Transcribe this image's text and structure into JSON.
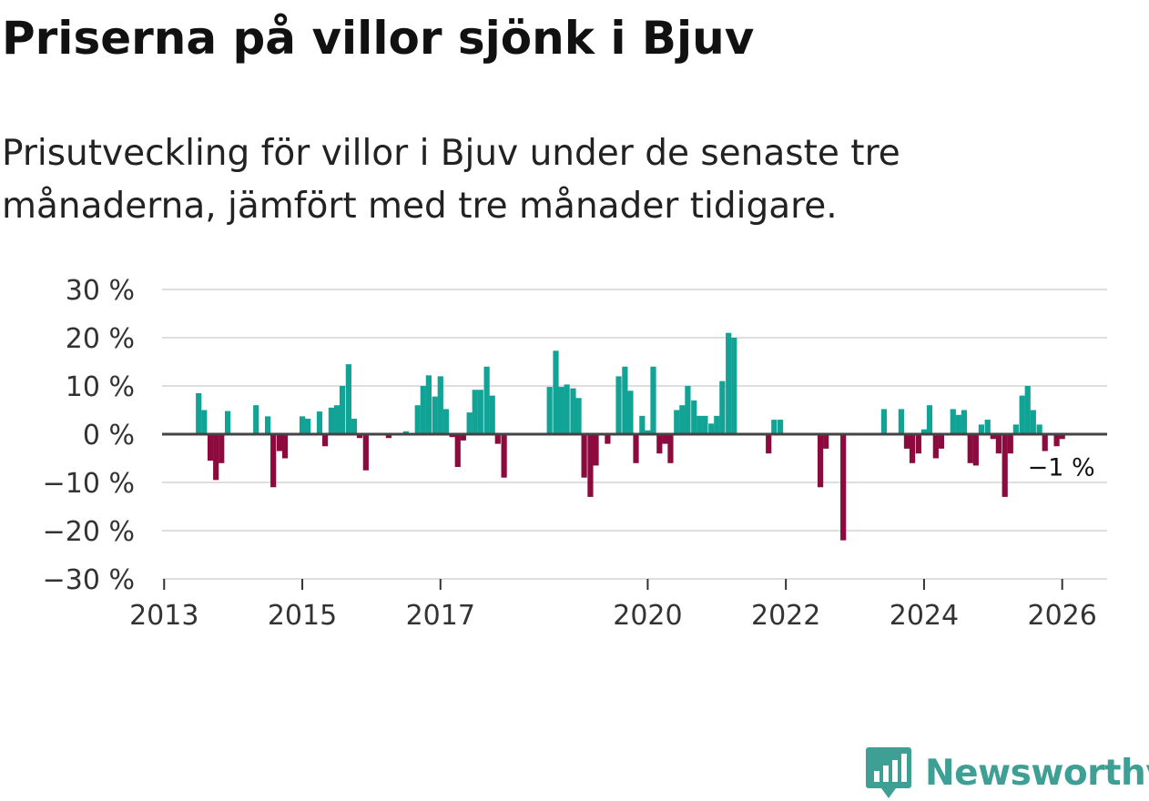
{
  "title": "Priserna på villor sjönk i Bjuv",
  "subtitle": "Prisutveckling för villor i Bjuv under de senaste tre månaderna, jämfört med tre månader tidigare.",
  "brand": {
    "name": "Newsworthy",
    "logo_icon": "bar-chart-speech-bubble-icon",
    "color": "#3ea094"
  },
  "chart_data": {
    "type": "bar",
    "title": "Priserna på villor sjönk i Bjuv",
    "xlabel": "",
    "ylabel": "",
    "ylim": [
      -30,
      30
    ],
    "xlim": [
      2012.97,
      2026.65
    ],
    "grid": true,
    "colors": {
      "positive": "#10a396",
      "negative": "#8c0a3e",
      "zero_line": "#444444",
      "grid": "#dedede"
    },
    "y_ticks": [
      {
        "value": 30,
        "label": "30 %"
      },
      {
        "value": 20,
        "label": "20 %"
      },
      {
        "value": 10,
        "label": "10 %"
      },
      {
        "value": 0,
        "label": "0 %"
      },
      {
        "value": -10,
        "label": "−10 %"
      },
      {
        "value": -20,
        "label": "−20 %"
      },
      {
        "value": -30,
        "label": "−30 %"
      }
    ],
    "x_ticks": [
      {
        "value": 2013,
        "label": "2013"
      },
      {
        "value": 2015,
        "label": "2015"
      },
      {
        "value": 2017,
        "label": "2017"
      },
      {
        "value": 2020,
        "label": "2020"
      },
      {
        "value": 2022,
        "label": "2022"
      },
      {
        "value": 2024,
        "label": "2024"
      },
      {
        "value": 2026,
        "label": "2026"
      }
    ],
    "end_label": "−1 %",
    "series": [
      {
        "name": "Prisutveckling",
        "unit": "%",
        "points": [
          [
            2013.5,
            8.5
          ],
          [
            2013.58,
            5
          ],
          [
            2013.67,
            -5.5
          ],
          [
            2013.75,
            -9.5
          ],
          [
            2013.83,
            -6
          ],
          [
            2013.92,
            4.8
          ],
          [
            2014.33,
            6
          ],
          [
            2014.5,
            3.7
          ],
          [
            2014.58,
            -11
          ],
          [
            2014.67,
            -3.5
          ],
          [
            2014.75,
            -5
          ],
          [
            2015.0,
            3.7
          ],
          [
            2015.08,
            3.2
          ],
          [
            2015.25,
            4.7
          ],
          [
            2015.33,
            -2.5
          ],
          [
            2015.42,
            5.5
          ],
          [
            2015.5,
            6
          ],
          [
            2015.58,
            10
          ],
          [
            2015.67,
            14.5
          ],
          [
            2015.75,
            3.2
          ],
          [
            2015.83,
            -0.8
          ],
          [
            2015.92,
            -7.5
          ],
          [
            2016.25,
            -0.8
          ],
          [
            2016.5,
            0.6
          ],
          [
            2016.67,
            6
          ],
          [
            2016.75,
            10
          ],
          [
            2016.83,
            12.2
          ],
          [
            2016.92,
            7.8
          ],
          [
            2017.0,
            12
          ],
          [
            2017.08,
            5.2
          ],
          [
            2017.17,
            -0.6
          ],
          [
            2017.25,
            -6.8
          ],
          [
            2017.33,
            -1.3
          ],
          [
            2017.42,
            4.5
          ],
          [
            2017.5,
            9.2
          ],
          [
            2017.58,
            9.2
          ],
          [
            2017.67,
            14
          ],
          [
            2017.75,
            8
          ],
          [
            2017.83,
            -2
          ],
          [
            2017.92,
            -9
          ],
          [
            2018.58,
            9.8
          ],
          [
            2018.67,
            17.3
          ],
          [
            2018.75,
            9.8
          ],
          [
            2018.83,
            10.3
          ],
          [
            2018.92,
            9.5
          ],
          [
            2019.0,
            7.5
          ],
          [
            2019.08,
            -9
          ],
          [
            2019.17,
            -13
          ],
          [
            2019.25,
            -6.5
          ],
          [
            2019.42,
            -2
          ],
          [
            2019.58,
            12
          ],
          [
            2019.67,
            14
          ],
          [
            2019.75,
            9
          ],
          [
            2019.83,
            -6
          ],
          [
            2019.92,
            3.8
          ],
          [
            2020.0,
            0.8
          ],
          [
            2020.08,
            14
          ],
          [
            2020.17,
            -4
          ],
          [
            2020.25,
            -2
          ],
          [
            2020.33,
            -6
          ],
          [
            2020.42,
            5
          ],
          [
            2020.5,
            6
          ],
          [
            2020.58,
            10
          ],
          [
            2020.67,
            7
          ],
          [
            2020.75,
            3.8
          ],
          [
            2020.83,
            3.8
          ],
          [
            2020.92,
            2.2
          ],
          [
            2021.0,
            3.8
          ],
          [
            2021.08,
            11
          ],
          [
            2021.17,
            21
          ],
          [
            2021.25,
            20
          ],
          [
            2021.75,
            -4
          ],
          [
            2021.83,
            3
          ],
          [
            2021.92,
            3
          ],
          [
            2022.5,
            -11
          ],
          [
            2022.58,
            -3
          ],
          [
            2022.83,
            -22
          ],
          [
            2023.42,
            5.2
          ],
          [
            2023.67,
            5.2
          ],
          [
            2023.75,
            -3
          ],
          [
            2023.83,
            -6
          ],
          [
            2023.92,
            -4
          ],
          [
            2024.0,
            1
          ],
          [
            2024.08,
            6
          ],
          [
            2024.17,
            -5
          ],
          [
            2024.25,
            -3
          ],
          [
            2024.42,
            5.2
          ],
          [
            2024.5,
            4
          ],
          [
            2024.58,
            5
          ],
          [
            2024.67,
            -6
          ],
          [
            2024.75,
            -6.5
          ],
          [
            2024.83,
            2
          ],
          [
            2024.92,
            3
          ],
          [
            2025.0,
            -1
          ],
          [
            2025.08,
            -4
          ],
          [
            2025.17,
            -13
          ],
          [
            2025.25,
            -4
          ],
          [
            2025.33,
            2
          ],
          [
            2025.42,
            8
          ],
          [
            2025.5,
            10
          ],
          [
            2025.58,
            5
          ],
          [
            2025.67,
            2
          ],
          [
            2025.75,
            -3.5
          ],
          [
            2025.92,
            -2.5
          ],
          [
            2026.0,
            -1
          ]
        ]
      }
    ]
  }
}
